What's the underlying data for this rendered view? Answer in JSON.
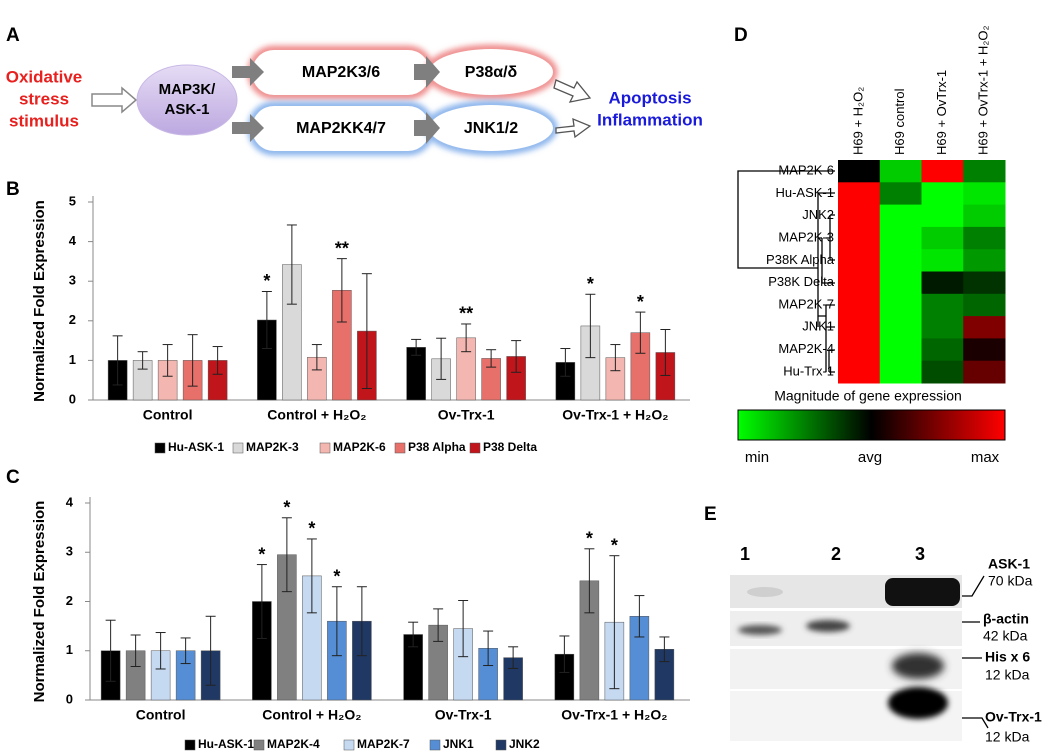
{
  "diagram": {
    "panel": "A",
    "stimulus": [
      "Oxidative",
      "stress",
      "stimulus"
    ],
    "nodes": [
      [
        "MAP3K/",
        "ASK-1"
      ],
      "MAP2K3/6",
      "MAP2KK4/7",
      "P38α/δ",
      "JNK1/2"
    ],
    "outcomes": [
      "Apoptosis",
      "Inflammation"
    ]
  },
  "chart_data": [
    {
      "type": "bar",
      "panel": "B",
      "y_label": "Normalized Fold Expression",
      "categories": [
        "Control",
        "Control + H₂O₂",
        "Ov-Trx-1",
        "Ov-Trx-1 + H₂O₂"
      ],
      "ylim": [
        0,
        5
      ],
      "yticks": [
        0,
        1,
        2,
        3,
        4,
        5
      ],
      "series": [
        {
          "name": "Hu-ASK-1",
          "color": "#000000",
          "values": [
            1.0,
            2.02,
            1.33,
            0.95
          ],
          "errors": [
            0.62,
            0.72,
            0.2,
            0.35
          ],
          "stars": [
            null,
            "*",
            null,
            null
          ]
        },
        {
          "name": "MAP2K-3",
          "color": "#d9d9d9",
          "values": [
            1.0,
            3.42,
            1.04,
            1.87
          ],
          "errors": [
            0.22,
            1.0,
            0.52,
            0.8
          ],
          "stars": [
            null,
            null,
            null,
            "*"
          ]
        },
        {
          "name": "MAP2K-6",
          "color": "#f4b6b0",
          "values": [
            1.0,
            1.08,
            1.57,
            1.07
          ],
          "errors": [
            0.4,
            0.32,
            0.35,
            0.33
          ],
          "stars": [
            null,
            null,
            "**",
            null
          ]
        },
        {
          "name": "P38 Alpha",
          "color": "#e8706a",
          "values": [
            1.0,
            2.77,
            1.05,
            1.7
          ],
          "errors": [
            0.65,
            0.8,
            0.22,
            0.52
          ],
          "stars": [
            null,
            "**",
            null,
            "*"
          ]
        },
        {
          "name": "P38 Delta",
          "color": "#c0151b",
          "values": [
            1.0,
            1.74,
            1.1,
            1.2
          ],
          "errors": [
            0.35,
            1.45,
            0.4,
            0.58
          ],
          "stars": [
            null,
            null,
            null,
            null
          ]
        }
      ]
    },
    {
      "type": "bar",
      "panel": "C",
      "y_label": "Normalized Fold Expression",
      "categories": [
        "Control",
        "Control + H₂O₂",
        "Ov-Trx-1",
        "Ov-Trx-1 + H₂O₂"
      ],
      "ylim": [
        0,
        4
      ],
      "yticks": [
        0,
        1,
        2,
        3,
        4
      ],
      "series": [
        {
          "name": "Hu-ASK-1",
          "color": "#000000",
          "values": [
            1.0,
            2.0,
            1.33,
            0.93
          ],
          "errors": [
            0.62,
            0.75,
            0.25,
            0.37
          ],
          "stars": [
            null,
            "*",
            null,
            null
          ]
        },
        {
          "name": "MAP2K-4",
          "color": "#808080",
          "values": [
            1.0,
            2.95,
            1.52,
            2.42
          ],
          "errors": [
            0.32,
            0.75,
            0.33,
            0.65
          ],
          "stars": [
            null,
            "*",
            null,
            "*"
          ]
        },
        {
          "name": "MAP2K-7",
          "color": "#c5d9f1",
          "values": [
            1.0,
            2.52,
            1.45,
            1.58
          ],
          "errors": [
            0.37,
            0.75,
            0.57,
            1.35
          ],
          "stars": [
            null,
            "*",
            null,
            "*"
          ]
        },
        {
          "name": "JNK1",
          "color": "#558ed5",
          "values": [
            1.0,
            1.6,
            1.05,
            1.7
          ],
          "errors": [
            0.26,
            0.7,
            0.35,
            0.42
          ],
          "stars": [
            null,
            "*",
            null,
            null
          ]
        },
        {
          "name": "JNK2",
          "color": "#1f3864",
          "values": [
            1.0,
            1.6,
            0.86,
            1.03
          ],
          "errors": [
            0.7,
            0.7,
            0.22,
            0.25
          ],
          "stars": [
            null,
            null,
            null,
            null
          ]
        }
      ]
    },
    {
      "type": "heatmap",
      "panel": "D",
      "columns": [
        "H69 + H₂O₂",
        "H69 control",
        "H69 + OvTrx-1",
        "H69 + OvTrx-1 + H₂O₂"
      ],
      "rows": [
        "MAP2K-6",
        "Hu-ASK-1",
        "JNK2",
        "MAP2K-3",
        "P38K Alpha",
        "P38K Delta",
        "MAP2K-7",
        "JNK1",
        "MAP2K-4",
        "Hu-Trx-1"
      ],
      "values": [
        [
          0,
          -0.8,
          1,
          -0.5
        ],
        [
          1,
          -0.5,
          -1,
          -0.9
        ],
        [
          1,
          -1,
          -1,
          -0.8
        ],
        [
          1,
          -1,
          -0.8,
          -0.5
        ],
        [
          1,
          -1,
          -0.9,
          -0.6
        ],
        [
          1,
          -1,
          -0.1,
          -0.2
        ],
        [
          1,
          -1,
          -0.5,
          -0.4
        ],
        [
          1,
          -1,
          -0.5,
          0.5
        ],
        [
          1,
          -1,
          -0.4,
          0.1
        ],
        [
          1,
          -1,
          -0.3,
          0.4
        ]
      ],
      "zlim": [
        -1,
        1
      ],
      "colors": [
        "#00ff00",
        "#000000",
        "#ff0000"
      ],
      "colorbar_title": "Magnitude of gene expression",
      "colorbar_labels": [
        "min",
        "avg",
        "max"
      ]
    }
  ],
  "blot": {
    "panel": "E",
    "lanes": [
      "1",
      "2",
      "3"
    ],
    "bands": [
      {
        "name": "ASK-1",
        "size": "70 kDa"
      },
      {
        "name": "β-actin",
        "size": "42 kDa"
      },
      {
        "name": "His x 6",
        "size": "12 kDa"
      },
      {
        "name": "Ov-Trx-1",
        "size": "12 kDa"
      }
    ]
  }
}
